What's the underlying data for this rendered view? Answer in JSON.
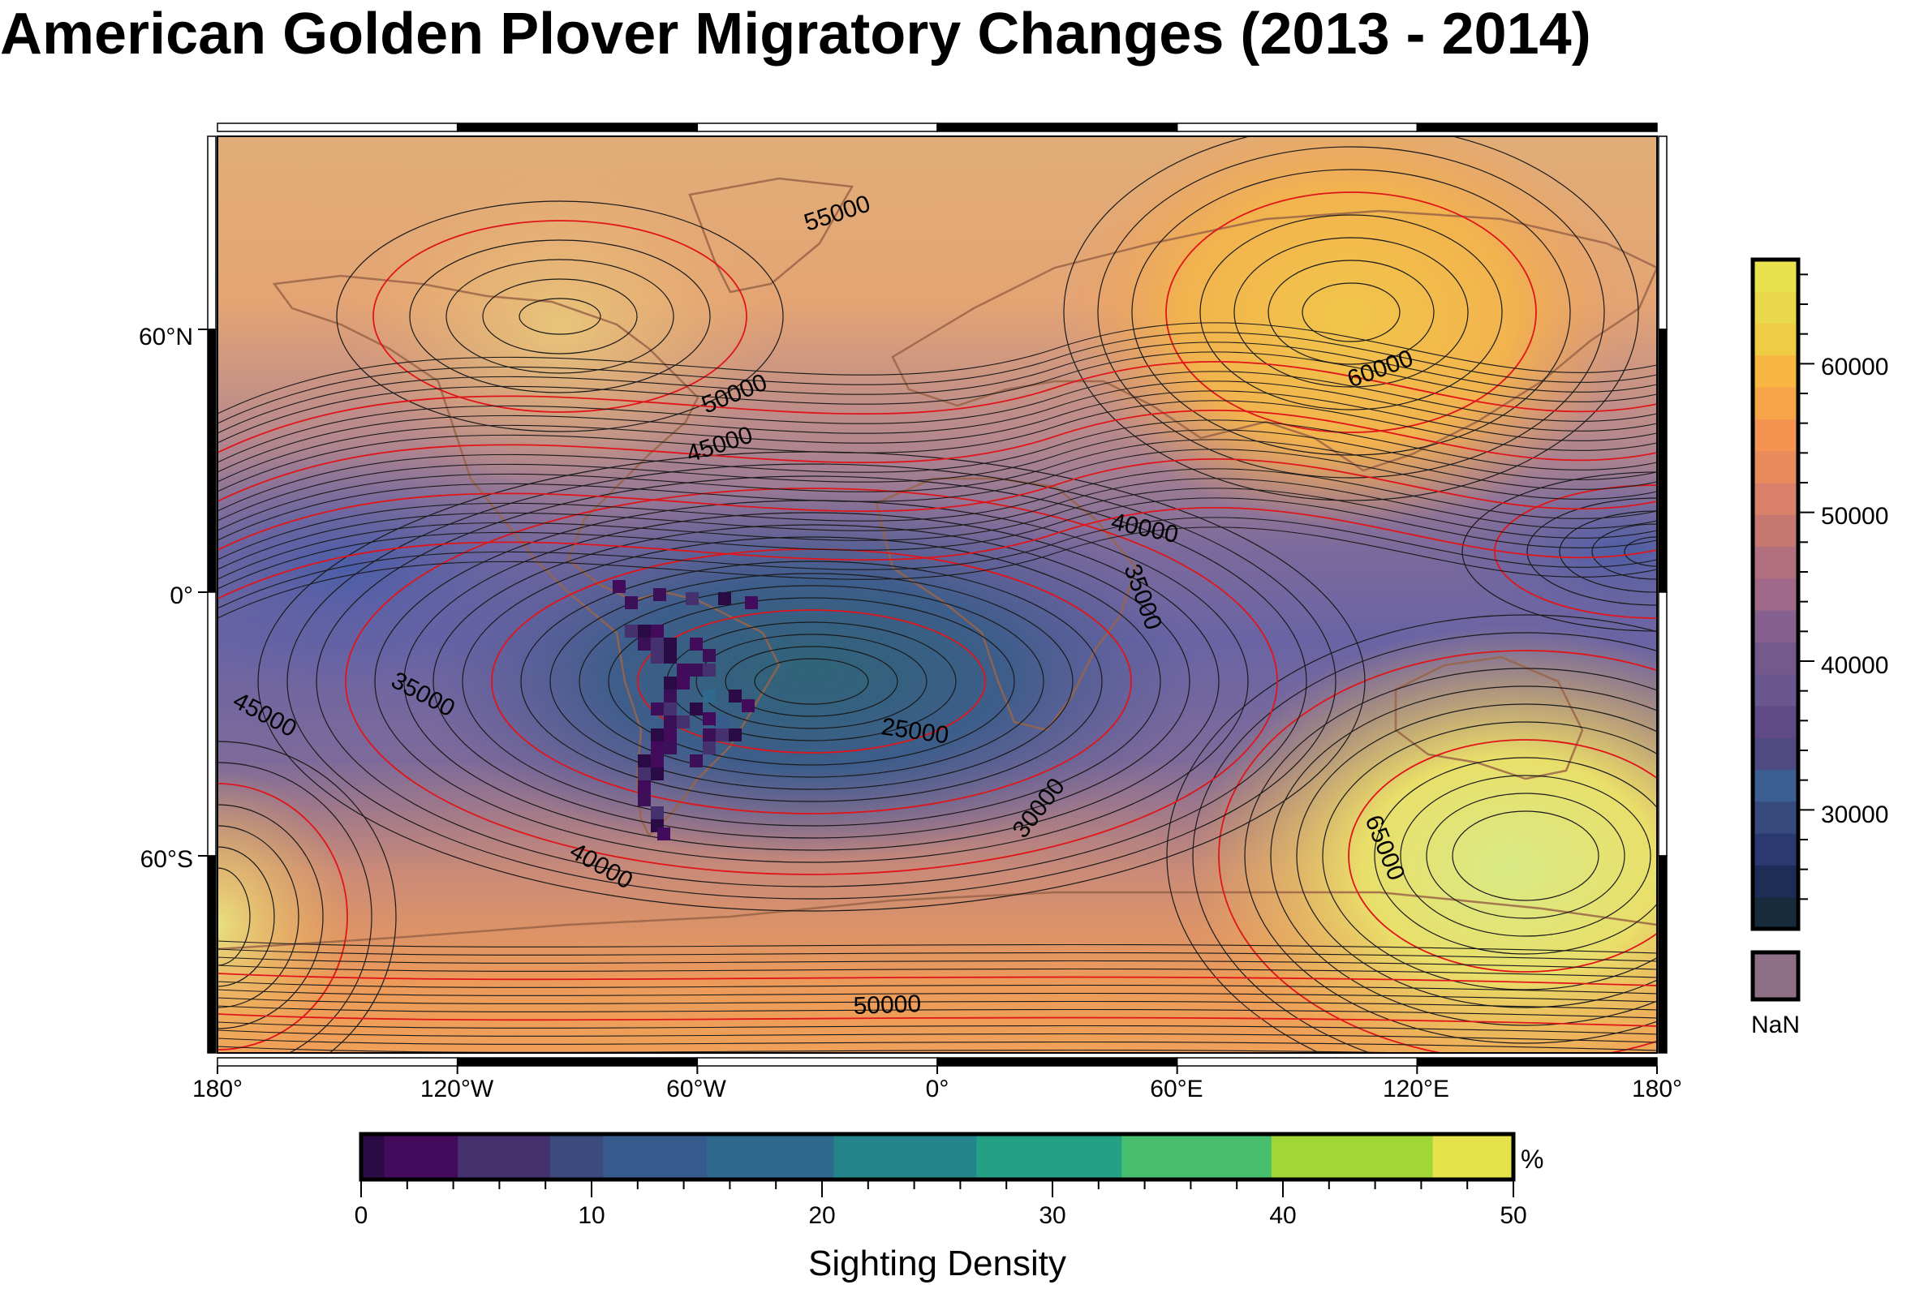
{
  "title": "American Golden Plover Migratory Changes (2013 - 2014)",
  "map": {
    "lon_ticks": [
      "180°",
      "120°W",
      "60°W",
      "0°",
      "60°E",
      "120°E",
      "180°"
    ],
    "lat_ticks": [
      "60°N",
      "0°",
      "60°S"
    ],
    "contour_labels": [
      "55000",
      "60000",
      "50000",
      "45000",
      "40000",
      "35000",
      "45000",
      "35000",
      "25000",
      "30000",
      "65000",
      "40000",
      "50000"
    ]
  },
  "right_colorbar": {
    "ticks": [
      "60000",
      "50000",
      "40000",
      "30000"
    ],
    "tick_values": [
      60000,
      50000,
      40000,
      30000
    ],
    "range": [
      22000,
      67000
    ],
    "colors": [
      "#182b3d",
      "#1e2d55",
      "#2a3a70",
      "#374a7c",
      "#3b5f92",
      "#504a82",
      "#5f4a86",
      "#6b578f",
      "#745a8c",
      "#86608e",
      "#a06989",
      "#b07080",
      "#c47870",
      "#d9806a",
      "#ea8b5c",
      "#f49450",
      "#f7a448",
      "#f8b542",
      "#f0cb44",
      "#e9d84a",
      "#e8e24e"
    ],
    "nan_label": "NaN",
    "nan_color": "#8e6f86"
  },
  "bottom_colorbar": {
    "label": "Sighting Density",
    "unit": "%",
    "ticks": [
      "0",
      "10",
      "20",
      "30",
      "40",
      "50"
    ],
    "range": [
      0,
      50
    ],
    "segments": [
      {
        "from": 0,
        "to": 1,
        "color": "#2b0b45"
      },
      {
        "from": 1,
        "to": 4.2,
        "color": "#430b5b"
      },
      {
        "from": 4.2,
        "to": 8.2,
        "color": "#46316f"
      },
      {
        "from": 8.2,
        "to": 10.5,
        "color": "#3d4a7e"
      },
      {
        "from": 10.5,
        "to": 15,
        "color": "#375b8d"
      },
      {
        "from": 15,
        "to": 20.5,
        "color": "#2f6a8e"
      },
      {
        "from": 20.5,
        "to": 26.7,
        "color": "#23848a"
      },
      {
        "from": 26.7,
        "to": 33,
        "color": "#24a085"
      },
      {
        "from": 33,
        "to": 39.5,
        "color": "#47bd6e"
      },
      {
        "from": 39.5,
        "to": 46.5,
        "color": "#a0d635"
      },
      {
        "from": 46.5,
        "to": 50,
        "color": "#e5e24a"
      }
    ]
  }
}
